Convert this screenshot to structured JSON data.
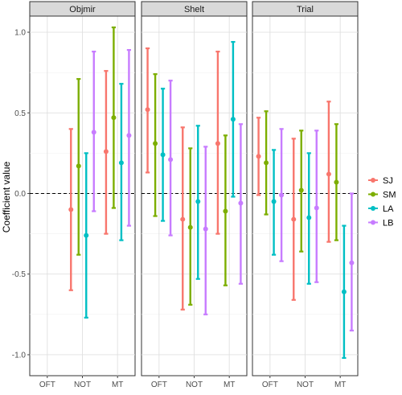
{
  "chart_data": {
    "type": "errorbar",
    "ylabel": "Coefficient value",
    "xlabel": "",
    "ylim": [
      -1.13,
      1.1
    ],
    "yticks": [
      1.0,
      0.5,
      0.0,
      -0.5,
      -1.0
    ],
    "ytick_labels": [
      "1.0",
      "0.5",
      "0.0",
      "-0.5",
      "-1.0"
    ],
    "reference_line": {
      "y": 0,
      "style": "dashed"
    },
    "categories": [
      "OFT",
      "NOT",
      "MT"
    ],
    "legend_position": "right",
    "series_colors": {
      "SJ": "#F8766D",
      "SM": "#7CAE00",
      "LA": "#00BFC4",
      "LB": "#C77CFF"
    },
    "series_order": [
      "SJ",
      "SM",
      "LA",
      "LB"
    ],
    "legend": [
      "SJ",
      "SM",
      "LA",
      "LB"
    ],
    "panels": [
      {
        "title": "Objmir",
        "data": {
          "OFT": {
            "SJ": null,
            "SM": null,
            "LA": null,
            "LB": null
          },
          "NOT": {
            "SJ": {
              "est": -0.1,
              "lo": -0.6,
              "hi": 0.4
            },
            "SM": {
              "est": 0.17,
              "lo": -0.38,
              "hi": 0.71
            },
            "LA": {
              "est": -0.26,
              "lo": -0.77,
              "hi": 0.25
            },
            "LB": {
              "est": 0.38,
              "lo": -0.11,
              "hi": 0.88
            }
          },
          "MT": {
            "SJ": {
              "est": 0.26,
              "lo": -0.25,
              "hi": 0.76
            },
            "SM": {
              "est": 0.47,
              "lo": -0.09,
              "hi": 1.03
            },
            "LA": {
              "est": 0.19,
              "lo": -0.29,
              "hi": 0.68
            },
            "LB": {
              "est": 0.36,
              "lo": -0.2,
              "hi": 0.89
            }
          }
        }
      },
      {
        "title": "Shelt",
        "data": {
          "OFT": {
            "SJ": {
              "est": 0.52,
              "lo": 0.13,
              "hi": 0.9
            },
            "SM": {
              "est": 0.31,
              "lo": -0.14,
              "hi": 0.74
            },
            "LA": {
              "est": 0.24,
              "lo": -0.17,
              "hi": 0.65
            },
            "LB": {
              "est": 0.21,
              "lo": -0.26,
              "hi": 0.7
            }
          },
          "NOT": {
            "SJ": {
              "est": -0.16,
              "lo": -0.72,
              "hi": 0.41
            },
            "SM": {
              "est": -0.21,
              "lo": -0.69,
              "hi": 0.28
            },
            "LA": {
              "est": -0.05,
              "lo": -0.53,
              "hi": 0.42
            },
            "LB": {
              "est": -0.22,
              "lo": -0.75,
              "hi": 0.29
            }
          },
          "MT": {
            "SJ": {
              "est": 0.31,
              "lo": -0.25,
              "hi": 0.88
            },
            "SM": {
              "est": -0.11,
              "lo": -0.57,
              "hi": 0.36
            },
            "LA": {
              "est": 0.46,
              "lo": -0.02,
              "hi": 0.94
            },
            "LB": {
              "est": -0.06,
              "lo": -0.56,
              "hi": 0.43
            }
          }
        }
      },
      {
        "title": "Trial",
        "data": {
          "OFT": {
            "SJ": {
              "est": 0.23,
              "lo": -0.01,
              "hi": 0.47
            },
            "SM": {
              "est": 0.19,
              "lo": -0.13,
              "hi": 0.51
            },
            "LA": {
              "est": -0.05,
              "lo": -0.38,
              "hi": 0.27
            },
            "LB": {
              "est": -0.01,
              "lo": -0.42,
              "hi": 0.4
            }
          },
          "NOT": {
            "SJ": {
              "est": -0.16,
              "lo": -0.66,
              "hi": 0.34
            },
            "SM": {
              "est": 0.02,
              "lo": -0.36,
              "hi": 0.39
            },
            "LA": {
              "est": -0.15,
              "lo": -0.56,
              "hi": 0.25
            },
            "LB": {
              "est": -0.09,
              "lo": -0.55,
              "hi": 0.39
            }
          },
          "MT": {
            "SJ": {
              "est": 0.12,
              "lo": -0.3,
              "hi": 0.57
            },
            "SM": {
              "est": 0.07,
              "lo": -0.29,
              "hi": 0.43
            },
            "LA": {
              "est": -0.61,
              "lo": -1.02,
              "hi": -0.2
            },
            "LB": {
              "est": -0.43,
              "lo": -0.85,
              "hi": 0.0
            }
          }
        }
      }
    ]
  }
}
